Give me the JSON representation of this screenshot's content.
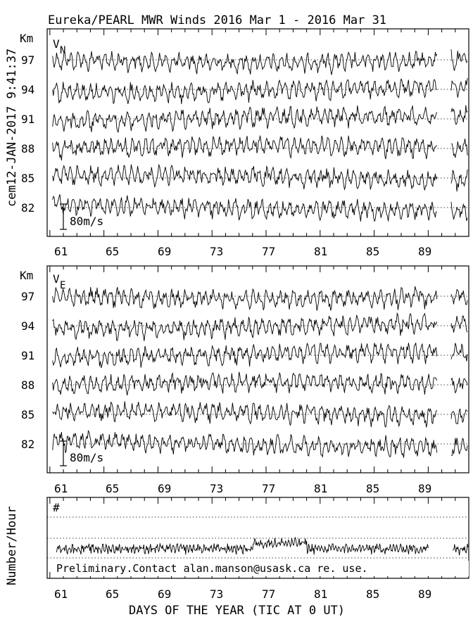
{
  "header": {
    "title": "Eureka/PEARL MWR Winds 2016 Mar  1 - 2016 Mar 31",
    "side_label": "cem12-JAN-2017  9:41:37"
  },
  "panels": [
    {
      "id": "vn",
      "component_label": "V",
      "component_sub": "N",
      "height_unit": "Km",
      "scale_label": "80m/s",
      "y_ticks": [
        "97",
        "94",
        "91",
        "88",
        "85",
        "82"
      ]
    },
    {
      "id": "ve",
      "component_label": "V",
      "component_sub": "E",
      "height_unit": "Km",
      "scale_label": "80m/s",
      "y_ticks": [
        "97",
        "94",
        "91",
        "88",
        "85",
        "82"
      ]
    },
    {
      "id": "count",
      "ylabel": "Number/Hour",
      "marker": "#",
      "note": "Preliminary.Contact alan.manson@usask.ca re. use."
    }
  ],
  "x_ticks": [
    "61",
    "65",
    "69",
    "73",
    "77",
    "81",
    "85",
    "89"
  ],
  "xlabel": "DAYS OF THE YEAR (TIC AT 0 UT)",
  "chart_data": [
    {
      "type": "line",
      "title": "Eureka/PEARL MWR Winds 2016 Mar  1 - 2016 Mar 31",
      "panel": "V_N",
      "xlabel": "DAYS OF THE YEAR (TIC AT 0 UT)",
      "ylabel": "Km",
      "xlim": [
        60.8,
        92.0
      ],
      "x_ticks": [
        61,
        65,
        69,
        73,
        77,
        81,
        85,
        89
      ],
      "data_gap": [
        89.7,
        90.7
      ],
      "series": [
        {
          "name": "97",
          "baseline_km": 97
        },
        {
          "name": "94",
          "baseline_km": 94
        },
        {
          "name": "91",
          "baseline_km": 91
        },
        {
          "name": "88",
          "baseline_km": 88
        },
        {
          "name": "85",
          "baseline_km": 85
        },
        {
          "name": "82",
          "baseline_km": 82
        }
      ],
      "scale_bar_ms": 80
    },
    {
      "type": "line",
      "panel": "V_E",
      "xlabel": "DAYS OF THE YEAR (TIC AT 0 UT)",
      "ylabel": "Km",
      "xlim": [
        60.8,
        92.0
      ],
      "x_ticks": [
        61,
        65,
        69,
        73,
        77,
        81,
        85,
        89
      ],
      "data_gap": [
        89.7,
        90.7
      ],
      "series": [
        {
          "name": "97",
          "baseline_km": 97
        },
        {
          "name": "94",
          "baseline_km": 94
        },
        {
          "name": "91",
          "baseline_km": 91
        },
        {
          "name": "88",
          "baseline_km": 88
        },
        {
          "name": "85",
          "baseline_km": 85
        },
        {
          "name": "82",
          "baseline_km": 82
        }
      ],
      "scale_bar_ms": 80
    },
    {
      "type": "line",
      "panel": "count",
      "xlabel": "DAYS OF THE YEAR (TIC AT 0 UT)",
      "ylabel": "Number/Hour",
      "xlim": [
        60.8,
        92.0
      ],
      "x_ticks": [
        61,
        65,
        69,
        73,
        77,
        81,
        85,
        89
      ],
      "data_gap": [
        89.7,
        90.7
      ]
    }
  ]
}
